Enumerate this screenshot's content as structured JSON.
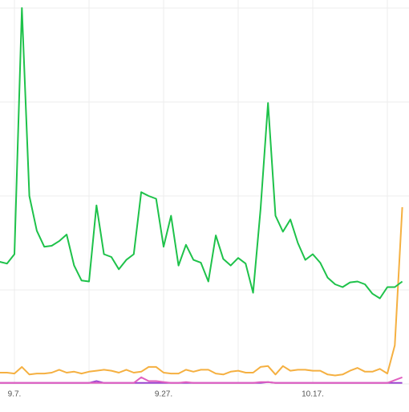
{
  "chart_data": {
    "type": "line",
    "categories": [
      null,
      null,
      "9.7.",
      null,
      null,
      null,
      null,
      null,
      null,
      null,
      null,
      null,
      null,
      null,
      null,
      null,
      null,
      null,
      null,
      null,
      null,
      null,
      "9.27.",
      null,
      null,
      null,
      null,
      null,
      null,
      null,
      null,
      null,
      null,
      null,
      null,
      null,
      null,
      null,
      null,
      null,
      null,
      null,
      "10.17.",
      null,
      null,
      null,
      null,
      null,
      null,
      null,
      null,
      null,
      null,
      null,
      null
    ],
    "series": [
      {
        "color": "#9b45d0",
        "values": [
          0.01,
          0.01,
          0.01,
          0.01,
          0.01,
          0.01,
          0.01,
          0.01,
          0.01,
          0.01,
          0.01,
          0.01,
          0.01,
          0.03,
          0.01,
          0.01,
          0.01,
          0.01,
          0.01,
          0.01,
          0.01,
          0.01,
          0.01,
          0.01,
          0.01,
          0.01,
          0.01,
          0.01,
          0.01,
          0.01,
          0.01,
          0.01,
          0.01,
          0.01,
          0.01,
          0.01,
          0.02,
          0.01,
          0.01,
          0.01,
          0.01,
          0.01,
          0.01,
          0.01,
          0.01,
          0.01,
          0.01,
          0.01,
          0.01,
          0.01,
          0.01,
          0.01,
          0.01,
          0.01,
          0.01
        ]
      },
      {
        "color": "#e060c0",
        "values": [
          0.01,
          0.01,
          0.01,
          0.01,
          0.01,
          0.01,
          0.01,
          0.01,
          0.01,
          0.01,
          0.01,
          0.01,
          0.01,
          0.01,
          0.01,
          0.01,
          0.01,
          0.01,
          0.01,
          0.07,
          0.03,
          0.03,
          0.02,
          0.01,
          0.01,
          0.02,
          0.01,
          0.01,
          0.01,
          0.01,
          0.01,
          0.01,
          0.01,
          0.01,
          0.01,
          0.02,
          0.02,
          0.01,
          0.01,
          0.01,
          0.01,
          0.01,
          0.01,
          0.01,
          0.01,
          0.01,
          0.01,
          0.01,
          0.01,
          0.01,
          0.01,
          0.01,
          0.01,
          0.04,
          0.07
        ]
      },
      {
        "color": "#f5b041",
        "values": [
          0.12,
          0.12,
          0.11,
          0.18,
          0.1,
          0.11,
          0.11,
          0.12,
          0.15,
          0.12,
          0.13,
          0.11,
          0.13,
          0.14,
          0.15,
          0.14,
          0.12,
          0.15,
          0.12,
          0.13,
          0.18,
          0.18,
          0.12,
          0.11,
          0.11,
          0.15,
          0.13,
          0.15,
          0.15,
          0.11,
          0.1,
          0.13,
          0.14,
          0.12,
          0.12,
          0.18,
          0.19,
          0.1,
          0.19,
          0.14,
          0.15,
          0.15,
          0.14,
          0.14,
          0.1,
          0.09,
          0.1,
          0.14,
          0.17,
          0.13,
          0.13,
          0.16,
          0.11,
          0.41,
          1.88
        ]
      },
      {
        "color": "#1ec24a",
        "values": [
          1.3,
          1.28,
          1.38,
          4.0,
          2.0,
          1.63,
          1.46,
          1.47,
          1.52,
          1.59,
          1.26,
          1.1,
          1.09,
          1.9,
          1.38,
          1.35,
          1.22,
          1.32,
          1.38,
          2.04,
          2.0,
          1.97,
          1.46,
          1.79,
          1.26,
          1.48,
          1.32,
          1.29,
          1.09,
          1.58,
          1.33,
          1.26,
          1.34,
          1.28,
          0.97,
          1.86,
          2.99,
          1.79,
          1.62,
          1.75,
          1.5,
          1.32,
          1.38,
          1.29,
          1.13,
          1.06,
          1.03,
          1.08,
          1.09,
          1.06,
          0.96,
          0.91,
          1.03,
          1.03,
          1.09
        ]
      }
    ],
    "ylim": [
      0,
      4
    ],
    "yticks": [
      0,
      1,
      2,
      3,
      4
    ],
    "grid": true
  }
}
